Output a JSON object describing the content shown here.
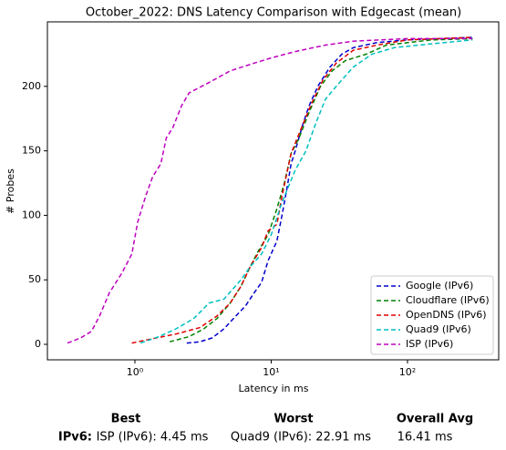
{
  "chart_data": {
    "type": "line",
    "title": "October_2022: DNS Latency Comparison with Edgecast (mean)",
    "xlabel": "Latency in ms",
    "ylabel": "# Probes",
    "xscale": "log",
    "xlim": [
      0.228,
      467
    ],
    "ylim": [
      -12,
      250
    ],
    "xticks": [
      {
        "value": 1,
        "label": "10⁰"
      },
      {
        "value": 10,
        "label": "10¹"
      },
      {
        "value": 100,
        "label": "10²"
      }
    ],
    "yticks": [
      0,
      50,
      100,
      150,
      200
    ],
    "legend": "lower right",
    "series": [
      {
        "name": "Google (IPv6)",
        "color": "#0000cc",
        "x": [
          2.4,
          3,
          3.7,
          4.5,
          5.5,
          6.5,
          7.5,
          8.5,
          9.5,
          11,
          12,
          13,
          14,
          15,
          17,
          19,
          22,
          27,
          33,
          40,
          60,
          100,
          300
        ],
        "values": [
          1,
          2,
          5,
          12,
          22,
          30,
          40,
          48,
          65,
          80,
          100,
          120,
          140,
          150,
          170,
          185,
          200,
          215,
          225,
          230,
          234,
          236,
          238
        ]
      },
      {
        "name": "Cloudflare (IPv6)",
        "color": "#008000",
        "x": [
          1.8,
          2.5,
          3.2,
          4,
          5,
          6,
          7,
          8,
          9.5,
          11,
          12.5,
          14,
          16,
          19,
          23,
          28,
          35,
          50,
          70,
          150,
          300
        ],
        "values": [
          2,
          6,
          12,
          20,
          32,
          45,
          60,
          72,
          85,
          105,
          125,
          148,
          160,
          180,
          200,
          212,
          220,
          225,
          232,
          236,
          237
        ]
      },
      {
        "name": "OpenDNS (IPv6)",
        "color": "#e00000",
        "x": [
          0.95,
          1.3,
          2,
          3,
          4,
          5,
          6,
          7,
          8.5,
          9.5,
          11,
          12,
          14,
          17,
          20,
          24,
          30,
          40,
          60,
          100,
          300
        ],
        "values": [
          1,
          4,
          8,
          13,
          22,
          32,
          45,
          60,
          75,
          88,
          93,
          115,
          148,
          170,
          188,
          205,
          218,
          228,
          232,
          236,
          238
        ]
      },
      {
        "name": "Quad9 (IPv6)",
        "color": "#00bfbf",
        "x": [
          1.1,
          1.5,
          2,
          2.7,
          3.5,
          4.5,
          6,
          7,
          8.5,
          10,
          12,
          15,
          18,
          21,
          25,
          30,
          40,
          55,
          80,
          150,
          300
        ],
        "values": [
          1,
          6,
          12,
          20,
          32,
          35,
          50,
          60,
          70,
          85,
          110,
          135,
          150,
          170,
          190,
          200,
          215,
          225,
          230,
          233,
          236
        ]
      },
      {
        "name": "ISP (IPv6)",
        "color": "#bf00bf",
        "x": [
          0.32,
          0.4,
          0.48,
          0.55,
          0.65,
          0.8,
          0.95,
          1.05,
          1.2,
          1.35,
          1.55,
          1.7,
          1.9,
          2.2,
          2.5,
          3.5,
          5,
          7.5,
          10,
          15,
          25,
          40,
          100,
          300
        ],
        "values": [
          1,
          5,
          10,
          22,
          40,
          55,
          70,
          95,
          115,
          130,
          140,
          160,
          168,
          185,
          195,
          203,
          212,
          218,
          222,
          227,
          232,
          235,
          237,
          237
        ]
      }
    ]
  },
  "table": {
    "headers": [
      "Best",
      "Worst",
      "Overall Avg"
    ],
    "rows": [
      [
        "IPv6:",
        "ISP (IPv6): 4.45 ms",
        "Quad9 (IPv6): 22.91 ms",
        "16.41 ms"
      ]
    ]
  }
}
